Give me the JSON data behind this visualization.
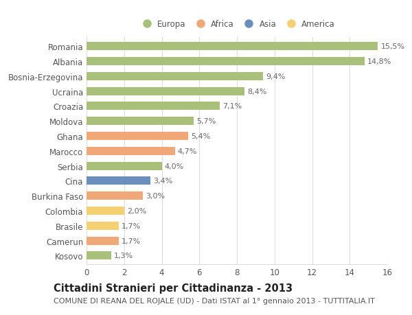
{
  "countries": [
    "Romania",
    "Albania",
    "Bosnia-Erzegovina",
    "Ucraina",
    "Croazia",
    "Moldova",
    "Ghana",
    "Marocco",
    "Serbia",
    "Cina",
    "Burkina Faso",
    "Colombia",
    "Brasile",
    "Camerun",
    "Kosovo"
  ],
  "values": [
    15.5,
    14.8,
    9.4,
    8.4,
    7.1,
    5.7,
    5.4,
    4.7,
    4.0,
    3.4,
    3.0,
    2.0,
    1.7,
    1.7,
    1.3
  ],
  "labels": [
    "15,5%",
    "14,8%",
    "9,4%",
    "8,4%",
    "7,1%",
    "5,7%",
    "5,4%",
    "4,7%",
    "4,0%",
    "3,4%",
    "3,0%",
    "2,0%",
    "1,7%",
    "1,7%",
    "1,3%"
  ],
  "continents": [
    "Europa",
    "Europa",
    "Europa",
    "Europa",
    "Europa",
    "Europa",
    "Africa",
    "Africa",
    "Europa",
    "Asia",
    "Africa",
    "America",
    "America",
    "Africa",
    "Europa"
  ],
  "continent_colors": {
    "Europa": "#a8c07a",
    "Africa": "#f0a878",
    "Asia": "#6a8fbf",
    "America": "#f5d070"
  },
  "legend_order": [
    "Europa",
    "Africa",
    "Asia",
    "America"
  ],
  "title": "Cittadini Stranieri per Cittadinanza - 2013",
  "subtitle": "COMUNE DI REANA DEL ROJALE (UD) - Dati ISTAT al 1° gennaio 2013 - TUTTITALIA.IT",
  "xlim": [
    0,
    16
  ],
  "xticks": [
    0,
    2,
    4,
    6,
    8,
    10,
    12,
    14,
    16
  ],
  "background_color": "#ffffff",
  "grid_color": "#dddddd",
  "bar_height": 0.55,
  "label_fontsize": 8,
  "tick_fontsize": 8.5,
  "title_fontsize": 10.5,
  "subtitle_fontsize": 8
}
